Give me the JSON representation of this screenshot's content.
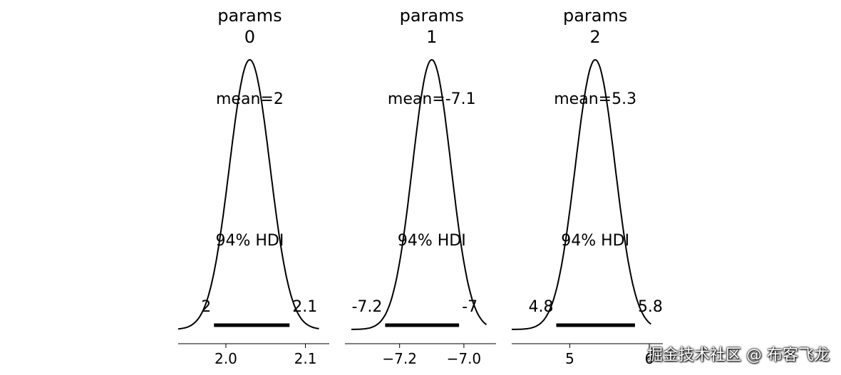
{
  "chart_data": [
    {
      "type": "area",
      "kind": "posterior",
      "title": "params\n0",
      "title_lines": [
        "params",
        "0"
      ],
      "mean": 2.03,
      "mean_label": "mean=2",
      "hdi_label": "94% HDI",
      "hdi": [
        1.985,
        2.08
      ],
      "hdi_low_label": "2",
      "hdi_high_label": "2.1",
      "xlim": [
        1.94,
        2.13
      ],
      "density_range": [
        1.94,
        2.117
      ],
      "sd": 0.0255,
      "ticks": [
        2.0,
        2.1
      ],
      "tick_labels": [
        "2.0",
        "2.1"
      ]
    },
    {
      "type": "area",
      "kind": "posterior",
      "title": "params\n1",
      "title_lines": [
        "params",
        "1"
      ],
      "mean": -7.1,
      "mean_label": "mean=-7.1",
      "hdi_label": "94% HDI",
      "hdi": [
        -7.245,
        -7.015
      ],
      "hdi_low_label": "-7.2",
      "hdi_high_label": "-7",
      "xlim": [
        -7.37,
        -6.9
      ],
      "density_range": [
        -7.35,
        -6.93
      ],
      "sd": 0.06,
      "ticks": [
        -7.2,
        -7.0
      ],
      "tick_labels": [
        "−7.2",
        "−7.0"
      ]
    },
    {
      "type": "area",
      "kind": "posterior",
      "title": "params\n2",
      "title_lines": [
        "params",
        "2"
      ],
      "mean": 5.32,
      "mean_label": "mean=5.3",
      "hdi_label": "94% HDI",
      "hdi": [
        4.83,
        5.82
      ],
      "hdi_low_label": "4.8",
      "hdi_high_label": "5.8",
      "xlim": [
        4.27,
        6.17
      ],
      "density_range": [
        4.27,
        6.02
      ],
      "sd": 0.25,
      "ticks": [
        5,
        6
      ],
      "tick_labels": [
        "5",
        "6"
      ]
    }
  ],
  "watermark": "掘金技术社区 @ 布客飞龙"
}
